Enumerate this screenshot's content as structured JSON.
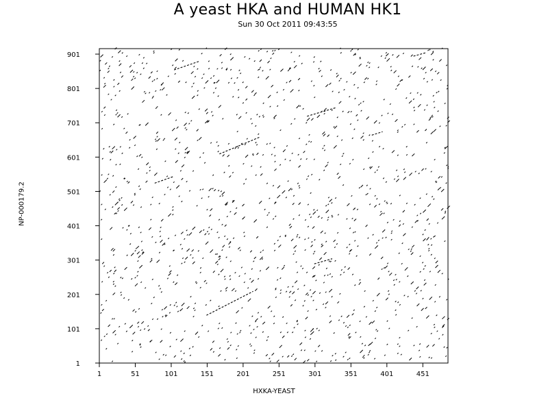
{
  "chart_data": {
    "type": "scatter",
    "title": "A yeast HKA and HUMAN HK1",
    "subtitle": "Sun 30 Oct 2011 09:43:55",
    "xlabel": "HXKA-YEAST",
    "ylabel": "NP-000179.2",
    "xlim": [
      1,
      486
    ],
    "ylim": [
      1,
      917
    ],
    "xticks": [
      1,
      51,
      101,
      151,
      201,
      251,
      301,
      351,
      401,
      451
    ],
    "yticks": [
      1,
      101,
      201,
      301,
      401,
      501,
      601,
      701,
      801,
      901
    ],
    "grid": false,
    "legend": "none",
    "series": [
      {
        "values": [
          {
            "x": 150,
            "y": 140,
            "x2": 215,
            "y2": 210
          },
          {
            "x": 168,
            "y": 610,
            "x2": 225,
            "y2": 660
          },
          {
            "x": 78,
            "y": 525,
            "x2": 105,
            "y2": 545
          },
          {
            "x": 300,
            "y": 290,
            "x2": 325,
            "y2": 305
          },
          {
            "x": 290,
            "y": 720,
            "x2": 330,
            "y2": 745
          },
          {
            "x": 380,
            "y": 665,
            "x2": 395,
            "y2": 675
          },
          {
            "x": 105,
            "y": 855,
            "x2": 140,
            "y2": 880
          },
          {
            "x": 438,
            "y": 895,
            "x2": 455,
            "y2": 905
          }
        ]
      }
    ],
    "noise_density": 1400
  }
}
